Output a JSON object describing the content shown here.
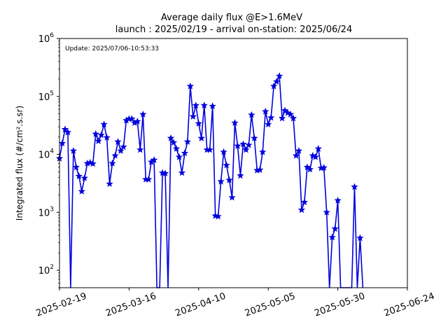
{
  "chart_data": {
    "type": "line",
    "title": "Average daily flux @E>1.6MeV",
    "subtitle": "launch : 2025/02/19 - arrival on-station: 2025/06/24",
    "annotation": "Update: 2025/07/06-10:53:33",
    "ylabel": "Integrated flux (#/cm².s.sr)",
    "xlabel": "",
    "xlim": [
      "2025-02-19",
      "2025-06-24"
    ],
    "ylim": [
      50,
      1000000
    ],
    "yscale": "log",
    "grid": false,
    "legend": "none",
    "line_color": "#0000dd",
    "marker": "star",
    "x_ticks": [
      "2025-02-19",
      "2025-03-16",
      "2025-04-10",
      "2025-05-05",
      "2025-05-30",
      "2025-06-24"
    ],
    "y_ticks": [
      {
        "value": 100,
        "base": "10",
        "exp": "2"
      },
      {
        "value": 1000,
        "base": "10",
        "exp": "3"
      },
      {
        "value": 10000,
        "base": "10",
        "exp": "4"
      },
      {
        "value": 100000,
        "base": "10",
        "exp": "5"
      },
      {
        "value": 1000000,
        "base": "10",
        "exp": "6"
      }
    ],
    "series": [
      {
        "x": [
          "2025-02-19",
          "2025-02-20",
          "2025-02-21",
          "2025-02-22",
          "2025-02-23",
          "2025-02-24",
          "2025-02-25",
          "2025-02-26",
          "2025-02-27",
          "2025-02-28",
          "2025-03-01",
          "2025-03-02",
          "2025-03-03",
          "2025-03-04",
          "2025-03-05",
          "2025-03-06",
          "2025-03-07",
          "2025-03-08",
          "2025-03-09",
          "2025-03-10",
          "2025-03-11",
          "2025-03-12",
          "2025-03-13",
          "2025-03-14",
          "2025-03-15",
          "2025-03-16",
          "2025-03-17",
          "2025-03-18",
          "2025-03-19",
          "2025-03-20",
          "2025-03-21",
          "2025-03-22",
          "2025-03-23",
          "2025-03-24",
          "2025-03-25",
          "2025-03-26",
          "2025-03-27",
          "2025-03-28",
          "2025-03-29",
          "2025-03-30",
          "2025-03-31",
          "2025-04-01",
          "2025-04-02",
          "2025-04-03",
          "2025-04-04",
          "2025-04-05",
          "2025-04-06",
          "2025-04-07",
          "2025-04-08",
          "2025-04-09",
          "2025-04-10",
          "2025-04-11",
          "2025-04-12",
          "2025-04-13",
          "2025-04-14",
          "2025-04-15",
          "2025-04-16",
          "2025-04-17",
          "2025-04-18",
          "2025-04-19",
          "2025-04-20",
          "2025-04-21",
          "2025-04-22",
          "2025-04-23",
          "2025-04-24",
          "2025-04-25",
          "2025-04-26",
          "2025-04-27",
          "2025-04-28",
          "2025-04-29",
          "2025-04-30",
          "2025-05-01",
          "2025-05-02",
          "2025-05-03",
          "2025-05-04",
          "2025-05-05",
          "2025-05-06",
          "2025-05-07",
          "2025-05-08",
          "2025-05-09",
          "2025-05-10",
          "2025-05-11",
          "2025-05-12",
          "2025-05-13",
          "2025-05-14",
          "2025-05-15",
          "2025-05-16",
          "2025-05-17",
          "2025-05-18",
          "2025-05-19",
          "2025-05-20",
          "2025-05-21",
          "2025-05-22",
          "2025-05-23",
          "2025-05-24",
          "2025-05-25",
          "2025-05-26",
          "2025-05-27",
          "2025-05-28",
          "2025-05-29",
          "2025-05-30",
          "2025-05-31",
          "2025-06-01",
          "2025-06-02",
          "2025-06-03",
          "2025-06-04",
          "2025-06-05",
          "2025-06-06",
          "2025-06-07",
          "2025-06-08"
        ],
        "y": [
          8500,
          15500,
          27000,
          24000,
          null,
          11500,
          6000,
          4200,
          2300,
          3900,
          7000,
          7200,
          6900,
          22500,
          17000,
          21500,
          33000,
          19500,
          3100,
          7000,
          9500,
          16500,
          11500,
          13500,
          38500,
          41000,
          41000,
          35000,
          37000,
          12000,
          49000,
          3700,
          3700,
          7400,
          8000,
          null,
          null,
          4800,
          4700,
          null,
          19000,
          16000,
          12500,
          9000,
          4800,
          10500,
          16500,
          150000,
          45000,
          70000,
          34000,
          19000,
          70000,
          12000,
          12000,
          68000,
          870,
          850,
          3400,
          11000,
          6500,
          3600,
          1800,
          35000,
          14000,
          4300,
          15000,
          12000,
          14500,
          48000,
          19000,
          5300,
          5400,
          11000,
          55000,
          33000,
          43000,
          150000,
          180000,
          225000,
          42000,
          57000,
          52000,
          49000,
          42000,
          9500,
          11500,
          1100,
          1500,
          6000,
          5500,
          9500,
          9000,
          12500,
          5800,
          5900,
          1000,
          null,
          370,
          520,
          1600,
          null,
          null,
          null,
          null,
          null,
          2750,
          null,
          360,
          null
        ]
      }
    ]
  }
}
